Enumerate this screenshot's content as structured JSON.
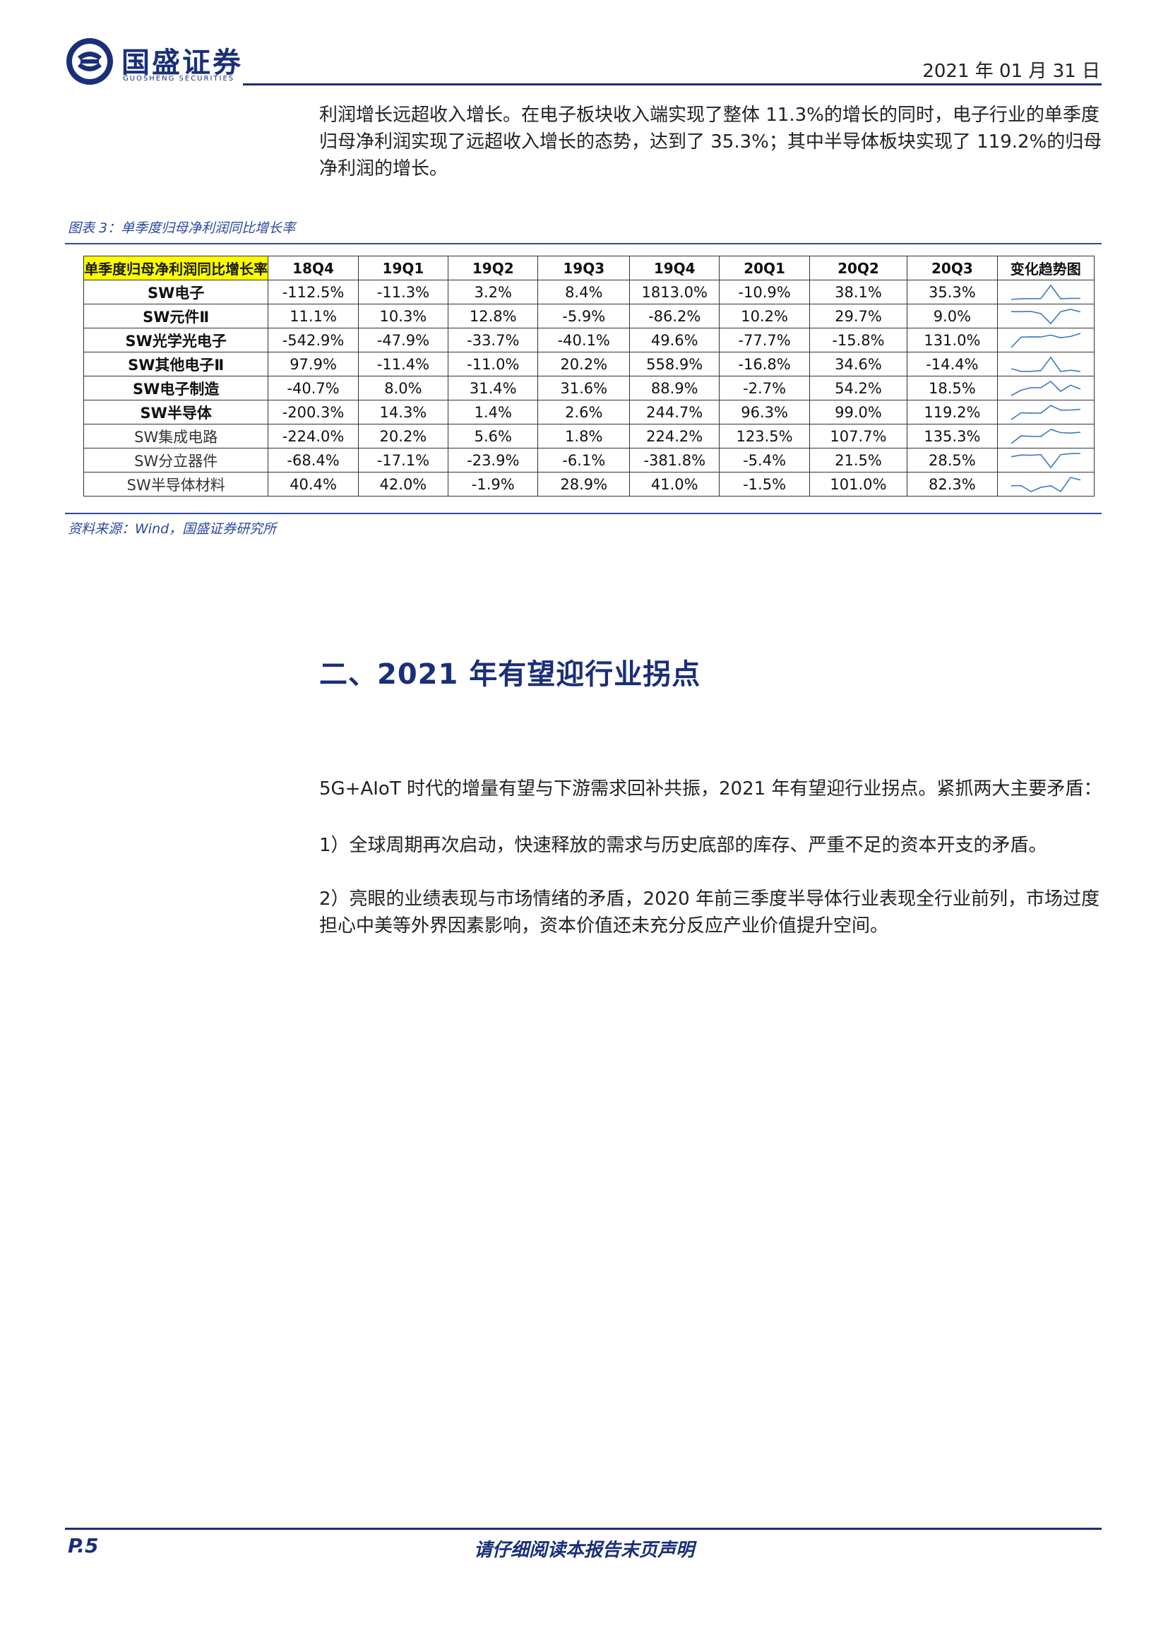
{
  "header": {
    "brand_cn": "国盛证券",
    "brand_en": "GUOSHENG SECURITIES",
    "date": "2021 年 01 月 31 日"
  },
  "intro": "利润增长远超收入增长。在电子板块收入端实现了整体 11.3%的增长的同时，电子行业的单季度归母净利润实现了远超收入增长的态势，达到了 35.3%；其中半导体板块实现了 119.2%的归母净利润的增长。",
  "figure": {
    "caption": "图表 3：单季度归母净利润同比增长率",
    "source": "资料来源：Wind，国盛证券研究所",
    "table": {
      "corner": "单季度归母净利润同比增长率",
      "columns": [
        "18Q4",
        "19Q1",
        "19Q2",
        "19Q3",
        "19Q4",
        "20Q1",
        "20Q2",
        "20Q3",
        "变化趋势图"
      ],
      "rows": [
        {
          "name": "SW电子",
          "bold": true,
          "values": [
            "-112.5%",
            "-11.3%",
            "3.2%",
            "8.4%",
            "1813.0%",
            "-10.9%",
            "38.1%",
            "35.3%"
          ],
          "trend": [
            -112.5,
            -11.3,
            3.2,
            8.4,
            1813.0,
            -10.9,
            38.1,
            35.3
          ]
        },
        {
          "name": "SW元件Ⅱ",
          "bold": true,
          "values": [
            "11.1%",
            "10.3%",
            "12.8%",
            "-5.9%",
            "-86.2%",
            "10.2%",
            "29.7%",
            "9.0%"
          ],
          "trend": [
            11.1,
            10.3,
            12.8,
            -5.9,
            -86.2,
            10.2,
            29.7,
            9.0
          ]
        },
        {
          "name": "SW光学光电子",
          "bold": true,
          "values": [
            "-542.9%",
            "-47.9%",
            "-33.7%",
            "-40.1%",
            "49.6%",
            "-77.7%",
            "-15.8%",
            "131.0%"
          ],
          "trend": [
            -542.9,
            -47.9,
            -33.7,
            -40.1,
            49.6,
            -77.7,
            -15.8,
            131.0
          ]
        },
        {
          "name": "SW其他电子Ⅱ",
          "bold": true,
          "values": [
            "97.9%",
            "-11.4%",
            "-11.0%",
            "20.2%",
            "558.9%",
            "-16.8%",
            "34.6%",
            "-14.4%"
          ],
          "trend": [
            97.9,
            -11.4,
            -11.0,
            20.2,
            558.9,
            -16.8,
            34.6,
            -14.4
          ]
        },
        {
          "name": "SW电子制造",
          "bold": true,
          "values": [
            "-40.7%",
            "8.0%",
            "31.4%",
            "31.6%",
            "88.9%",
            "-2.7%",
            "54.2%",
            "18.5%"
          ],
          "trend": [
            -40.7,
            8.0,
            31.4,
            31.6,
            88.9,
            -2.7,
            54.2,
            18.5
          ]
        },
        {
          "name": "SW半导体",
          "bold": true,
          "values": [
            "-200.3%",
            "14.3%",
            "1.4%",
            "2.6%",
            "244.7%",
            "96.3%",
            "99.0%",
            "119.2%"
          ],
          "trend": [
            -200.3,
            14.3,
            1.4,
            2.6,
            244.7,
            96.3,
            99.0,
            119.2
          ]
        },
        {
          "name": "SW集成电路",
          "bold": false,
          "values": [
            "-224.0%",
            "20.2%",
            "5.6%",
            "1.8%",
            "224.2%",
            "123.5%",
            "107.7%",
            "135.3%"
          ],
          "trend": [
            -224.0,
            20.2,
            5.6,
            1.8,
            224.2,
            123.5,
            107.7,
            135.3
          ]
        },
        {
          "name": "SW分立器件",
          "bold": false,
          "values": [
            "-68.4%",
            "-17.1%",
            "-23.9%",
            "-6.1%",
            "-381.8%",
            "-5.4%",
            "21.5%",
            "28.5%"
          ],
          "trend": [
            -68.4,
            -17.1,
            -23.9,
            -6.1,
            -381.8,
            -5.4,
            21.5,
            28.5
          ]
        },
        {
          "name": "SW半导体材料",
          "bold": false,
          "values": [
            "40.4%",
            "42.0%",
            "-1.9%",
            "28.9%",
            "41.0%",
            "-1.5%",
            "101.0%",
            "82.3%"
          ],
          "trend": [
            40.4,
            42.0,
            -1.9,
            28.9,
            41.0,
            -1.5,
            101.0,
            82.3
          ]
        }
      ],
      "spark_color": "#3b78c4"
    }
  },
  "section_title": "二、2021 年有望迎行业拐点",
  "body": {
    "p1": "5G+AIoT 时代的增量有望与下游需求回补共振，2021 年有望迎行业拐点。紧抓两大主要矛盾：",
    "p2": "1）全球周期再次启动，快速释放的需求与历史底部的库存、严重不足的资本开支的矛盾。",
    "p3": "2）亮眼的业绩表现与市场情绪的矛盾，2020 年前三季度半导体行业表现全行业前列，市场过度担心中美等外界因素影响，资本价值还未充分反应产业价值提升空间。"
  },
  "footer": {
    "page": "P.5",
    "note": "请仔细阅读本报告末页声明"
  }
}
